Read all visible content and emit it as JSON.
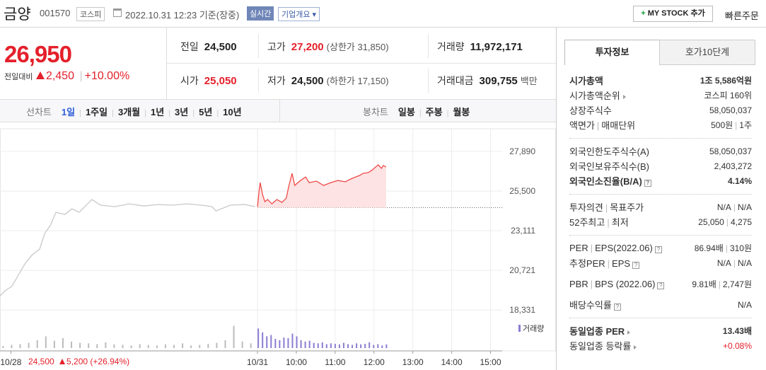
{
  "header": {
    "name": "금양",
    "code": "001570",
    "market": "코스피",
    "timestamp": "2022.10.31 12:23 기준(장중)",
    "realtime": "실시간",
    "company_info": "기업개요",
    "my_stock": "MY STOCK 추가",
    "quick_order": "빠른주문"
  },
  "quote": {
    "price": "26,950",
    "change_label": "전일대비",
    "change": "2,450",
    "rate": "+10.00%"
  },
  "stats": [
    [
      {
        "label": "전일",
        "value": "24,500"
      },
      {
        "label": "고가",
        "value": "27,200",
        "note": "(상한가 31,850)",
        "color": "#e4202b"
      },
      {
        "label": "거래량",
        "value": "11,972,171"
      }
    ],
    [
      {
        "label": "시가",
        "value": "25,050",
        "color": "#e4202b"
      },
      {
        "label": "저가",
        "value": "24,500",
        "note": "(하한가 17,150)"
      },
      {
        "label": "거래대금",
        "value": "309,755",
        "note": "백만"
      }
    ]
  ],
  "chart_tabs": {
    "line_label": "선차트",
    "line_periods": [
      "1일",
      "1주일",
      "3개월",
      "1년",
      "3년",
      "5년",
      "10년"
    ],
    "active": 0,
    "candle_label": "봉차트",
    "candle_periods": [
      "일봉",
      "주봉",
      "월봉"
    ]
  },
  "prev_day": {
    "close": "24,500",
    "change": "5,200",
    "rate": "(+26.94%)"
  },
  "chart_data": {
    "type": "line",
    "xlim": [
      2.37,
      15.3
    ],
    "ylim": [
      18000,
      29000
    ],
    "xticks": [
      {
        "value": 2.65,
        "label": "10/28"
      },
      {
        "value": 9,
        "label": "10/31"
      },
      {
        "value": 10,
        "label": "10:00"
      },
      {
        "value": 11,
        "label": "11:00"
      },
      {
        "value": 12,
        "label": "12:00"
      },
      {
        "value": 13,
        "label": "13:00"
      },
      {
        "value": 14,
        "label": "14:00"
      },
      {
        "value": 15,
        "label": "15:00"
      }
    ],
    "yticks": [
      {
        "value": 18331,
        "label": "18,331"
      },
      {
        "value": 20721,
        "label": "20,721"
      },
      {
        "value": 23111,
        "label": "23,111"
      },
      {
        "value": 25500,
        "label": "25,500"
      },
      {
        "value": 27890,
        "label": "27,890"
      }
    ],
    "grid": true,
    "reference_line": 24500,
    "series": [
      {
        "color": "#c9c9c9",
        "x": [
          2.37,
          2.52,
          2.67,
          2.83,
          3.02,
          3.2,
          3.39,
          3.52,
          3.67,
          3.81,
          4.04,
          4.22,
          4.41,
          4.59,
          4.74,
          4.96,
          5.33,
          5.7,
          6.07,
          6.44,
          6.81,
          7.18,
          7.56,
          7.83,
          7.93,
          8.3,
          8.67,
          8.94
        ],
        "values": [
          19180,
          19530,
          19740,
          20380,
          21150,
          21660,
          22000,
          22940,
          23450,
          24220,
          24090,
          24430,
          24220,
          24650,
          24990,
          24650,
          24560,
          24730,
          24600,
          24690,
          24650,
          24730,
          24650,
          24560,
          24300,
          24650,
          24690,
          24560
        ]
      },
      {
        "color": "#f04a4a",
        "fill": "#fde3e3",
        "x": [
          9.0,
          9.04,
          9.07,
          9.13,
          9.19,
          9.26,
          9.37,
          9.5,
          9.63,
          9.74,
          9.81,
          9.89,
          9.96,
          10.04,
          10.11,
          10.24,
          10.33,
          10.52,
          10.7,
          10.89,
          11.07,
          11.26,
          11.44,
          11.63,
          11.72,
          11.85,
          11.96,
          12.04,
          12.11,
          12.19,
          12.24,
          12.31
        ],
        "values": [
          24560,
          25500,
          26010,
          25290,
          24860,
          24990,
          24730,
          24990,
          24820,
          25070,
          25840,
          26570,
          25840,
          26010,
          26140,
          26350,
          26010,
          26100,
          25840,
          26010,
          26140,
          26060,
          26270,
          26440,
          26570,
          26610,
          26780,
          26950,
          27080,
          26870,
          27040,
          26950
        ]
      }
    ],
    "volume_lim": [
      0,
      100
    ],
    "volume": [
      {
        "color": "#bcbcbc",
        "x": [
          2.45,
          2.67,
          2.89,
          3.11,
          3.33,
          3.55,
          3.77,
          3.99,
          4.21,
          4.43,
          4.65,
          4.87,
          5.09,
          5.31,
          5.53,
          5.75,
          5.97,
          6.19,
          6.41,
          6.63,
          6.85,
          7.07,
          7.29,
          7.51,
          7.73,
          7.95,
          8.17,
          8.39,
          8.61,
          8.83
        ],
        "values": [
          8,
          12,
          15,
          20,
          30,
          45,
          28,
          38,
          25,
          20,
          18,
          15,
          22,
          14,
          12,
          10,
          15,
          12,
          10,
          14,
          12,
          18,
          10,
          12,
          16,
          20,
          30,
          85,
          25,
          18
        ]
      },
      {
        "name": "거래량",
        "color": "#8a7dd1",
        "x": [
          9.02,
          9.13,
          9.24,
          9.35,
          9.46,
          9.57,
          9.68,
          9.79,
          9.9,
          10.01,
          10.12,
          10.23,
          10.34,
          10.45,
          10.56,
          10.67,
          10.78,
          10.89,
          11.0,
          11.11,
          11.22,
          11.33,
          11.44,
          11.55,
          11.66,
          11.77,
          11.88,
          11.99,
          12.1,
          12.21,
          12.32
        ],
        "values": [
          75,
          60,
          45,
          50,
          35,
          30,
          40,
          38,
          55,
          45,
          30,
          25,
          28,
          20,
          18,
          22,
          15,
          18,
          16,
          14,
          20,
          15,
          12,
          18,
          14,
          16,
          22,
          12,
          15,
          10,
          14
        ]
      }
    ]
  },
  "invest_tabs": [
    "투자정보",
    "호가10단계"
  ],
  "invest": [
    [
      {
        "label": [
          "시가총액"
        ],
        "value": [
          "1조 5,586억원"
        ],
        "bold": true
      },
      {
        "label": [
          "시가총액순위"
        ],
        "arrow": true,
        "value": [
          "코스피 160위"
        ]
      },
      {
        "label": [
          "상장주식수"
        ],
        "value": [
          "58,050,037"
        ]
      },
      {
        "label": [
          "액면가",
          "매매단위"
        ],
        "value": [
          "500원",
          "1주"
        ]
      }
    ],
    [
      {
        "label": [
          "외국인한도주식수(A)"
        ],
        "value": [
          "58,050,037"
        ]
      },
      {
        "label": [
          "외국인보유주식수(B)"
        ],
        "value": [
          "2,403,272"
        ]
      },
      {
        "label": [
          "외국인소진율(B/A)"
        ],
        "help": true,
        "value": [
          "4.14%"
        ],
        "bold": true
      }
    ],
    [
      {
        "label": [
          "투자의견",
          "목표주가"
        ],
        "value": [
          "N/A",
          "N/A"
        ]
      },
      {
        "label": [
          "52주최고",
          "최저"
        ],
        "value": [
          "25,050",
          "4,275"
        ]
      }
    ],
    [
      {
        "label": [
          "PER",
          "EPS(2022.06)"
        ],
        "help": true,
        "value": [
          "86.94배",
          "310원"
        ]
      },
      {
        "label": [
          "추정PER",
          "EPS"
        ],
        "help": true,
        "value": [
          "N/A",
          "N/A"
        ]
      },
      {
        "label": [
          "PBR",
          "BPS (2022.06)"
        ],
        "help": true,
        "value": [
          "9.81배",
          "2,747원"
        ],
        "tall": true
      },
      {
        "label": [
          "배당수익률"
        ],
        "help": true,
        "value": [
          "N/A"
        ]
      }
    ],
    [
      {
        "label": [
          "동일업종 PER"
        ],
        "arrow": true,
        "value": [
          "13.43배"
        ],
        "bold": true
      },
      {
        "label": [
          "동일업종 등락률"
        ],
        "arrow": true,
        "value": [
          "+0.08%"
        ],
        "color": "#e4202b"
      }
    ]
  ]
}
